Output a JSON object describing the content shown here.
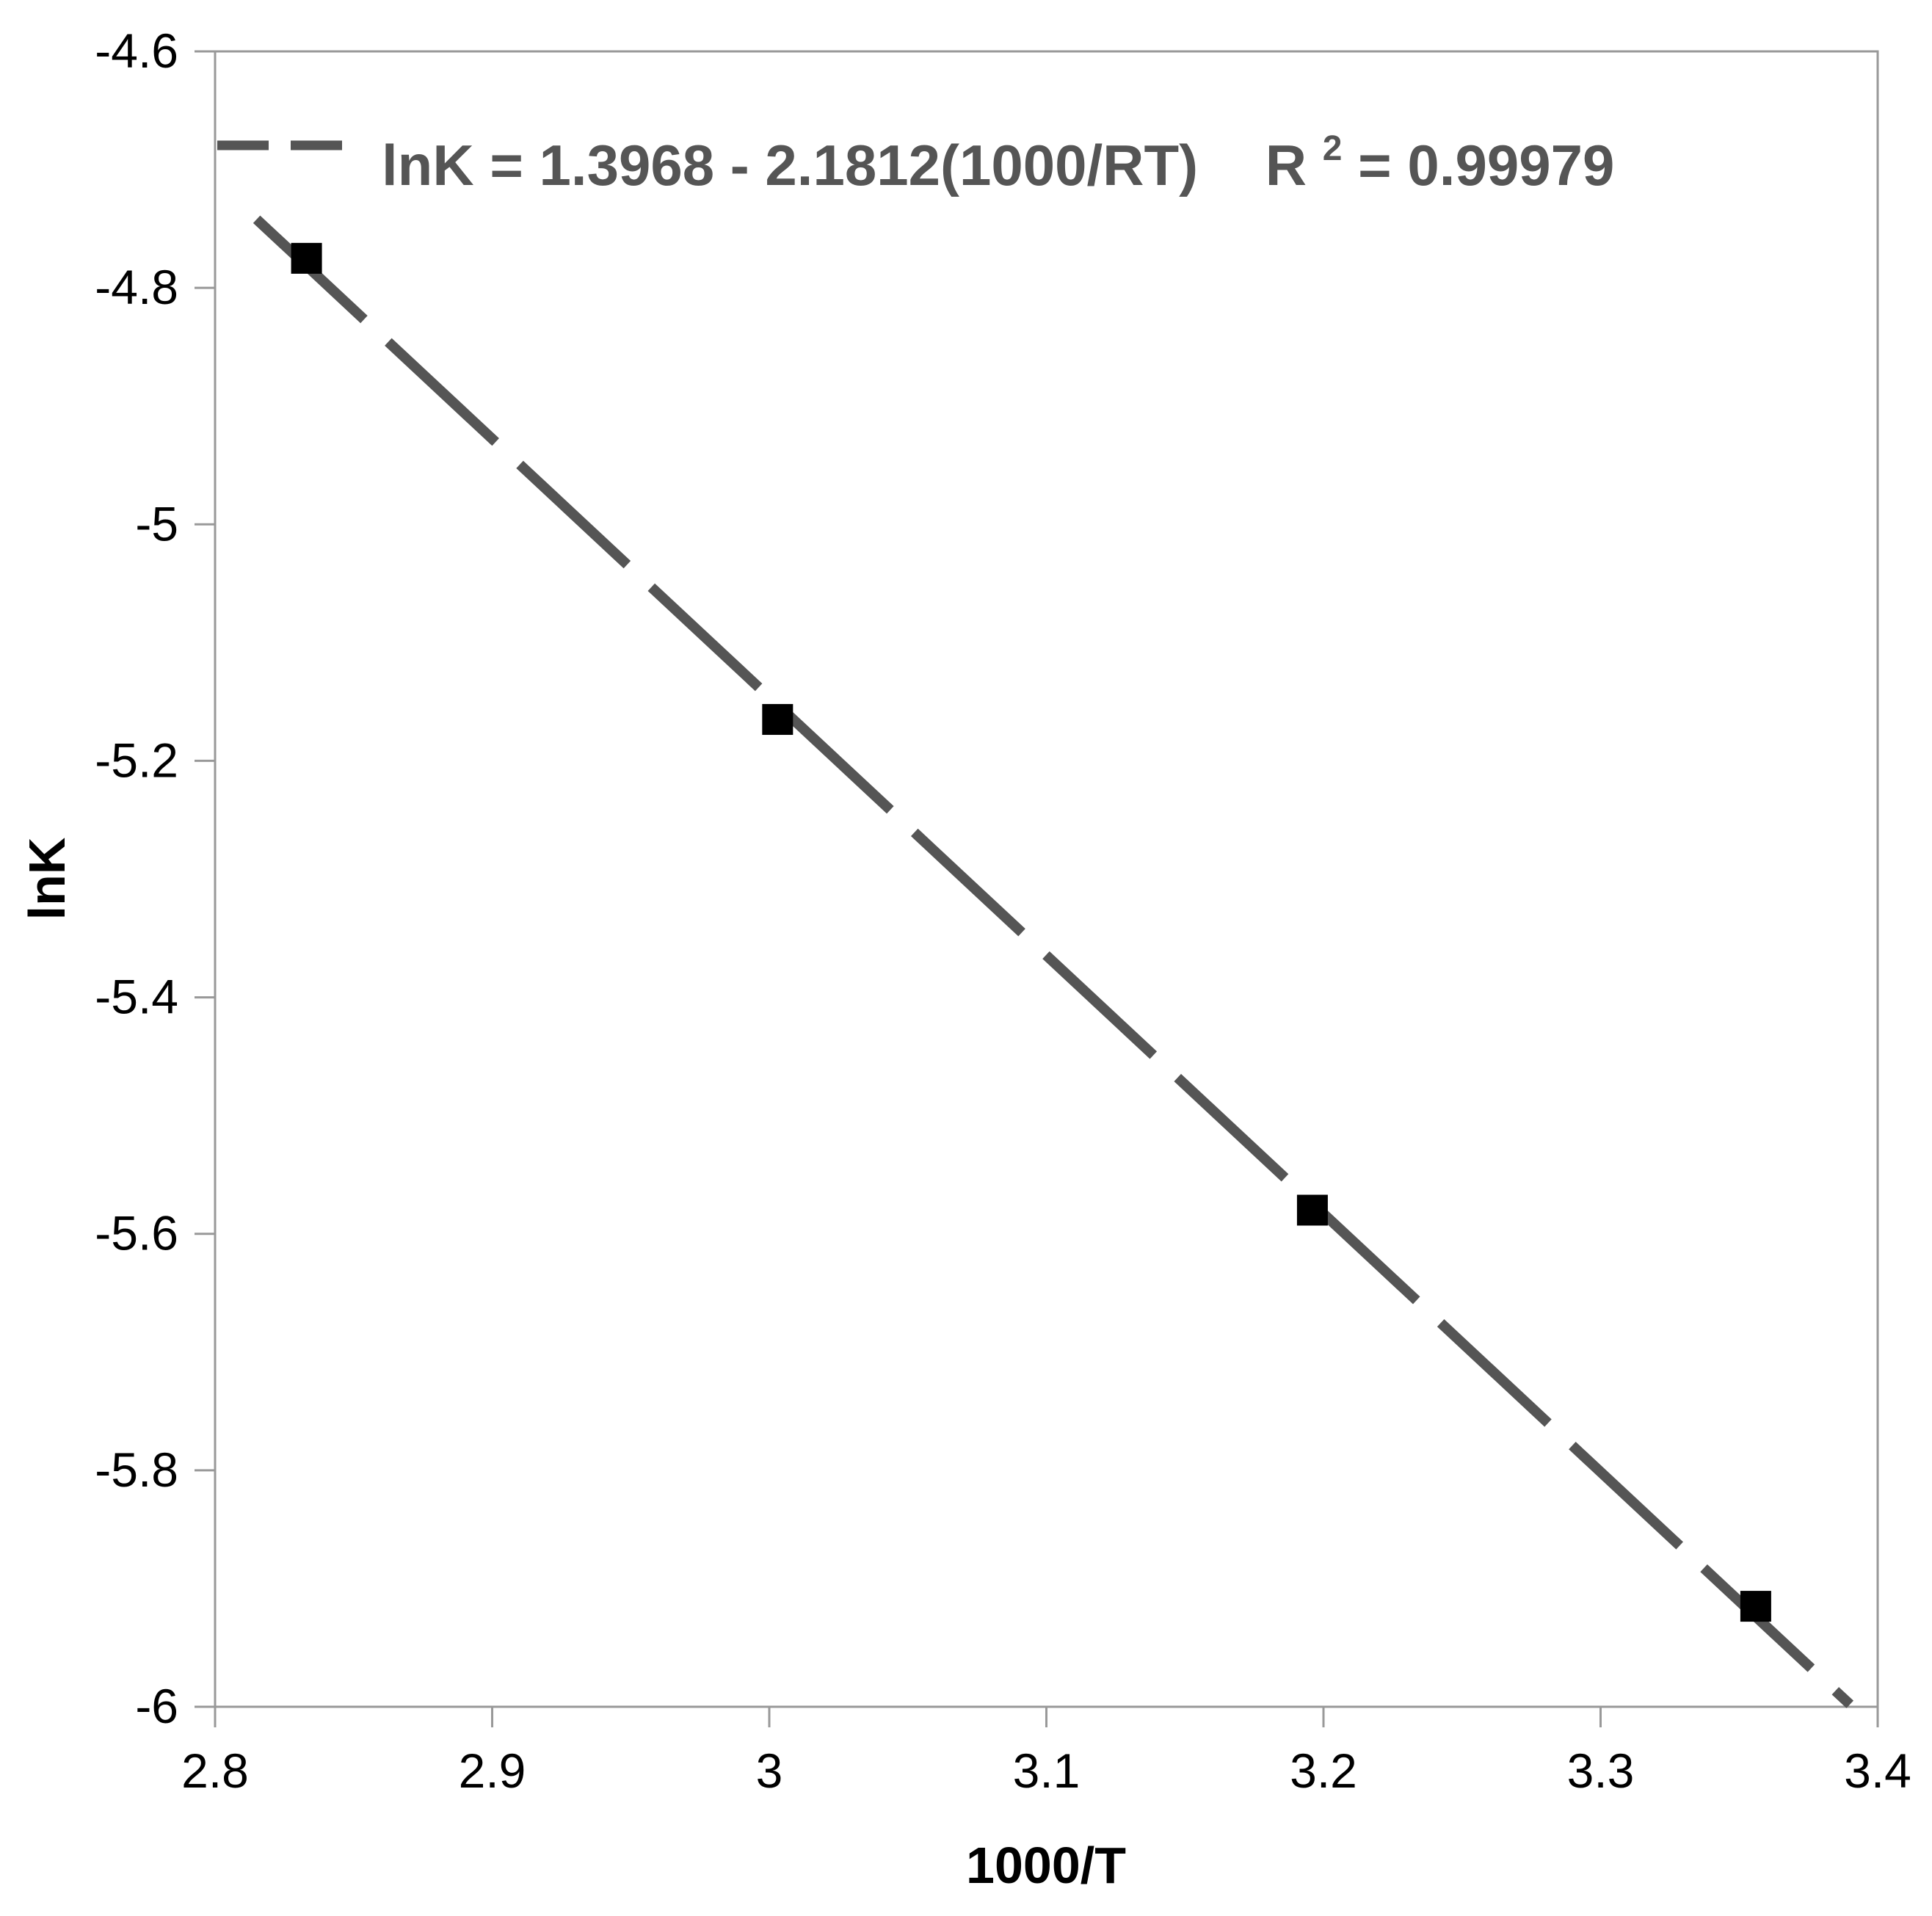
{
  "chart_data": {
    "type": "scatter",
    "xlabel": "1000/T",
    "ylabel": "lnK",
    "xlim": [
      2.8,
      3.4
    ],
    "ylim": [
      -6.0,
      -4.6
    ],
    "x_ticks": [
      "2.8",
      "2.9",
      "3",
      "3.1",
      "3.2",
      "3.3",
      "3.4"
    ],
    "y_ticks": [
      "-4.6",
      "-4.8",
      "-5",
      "-5.2",
      "-5.4",
      "-5.6",
      "-5.8",
      "-6"
    ],
    "grid": false,
    "legend_position": "top-left",
    "series": [
      {
        "kind": "points",
        "marker": "square",
        "color": "#000000",
        "x": [
          2.833,
          3.003,
          3.196,
          3.356
        ],
        "y": [
          -4.775,
          -5.165,
          -5.58,
          -5.915
        ]
      },
      {
        "kind": "fit-line",
        "style": "dashed",
        "color": "#555555",
        "x": [
          2.815,
          3.39
        ],
        "y": [
          -4.742,
          -5.998
        ]
      }
    ],
    "legend": {
      "equation": "lnK = 1.3968 - 2.1812(1000/RT)",
      "r2_label": "R",
      "r2_superscript": "2",
      "r2_value": "= 0.99979"
    }
  }
}
